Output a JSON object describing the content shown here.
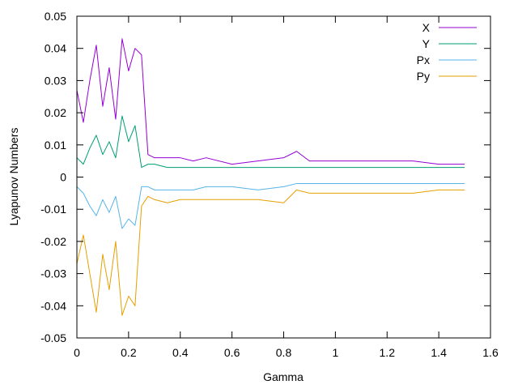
{
  "chart_data": {
    "type": "line",
    "xlabel": "Gamma",
    "ylabel": "Lyapunov Numbers",
    "xlim": [
      0,
      1.6
    ],
    "ylim": [
      -0.05,
      0.05
    ],
    "xticks": [
      "0",
      "0.2",
      "0.4",
      "0.6",
      "0.8",
      "1",
      "1.2",
      "1.4",
      "1.6"
    ],
    "yticks": [
      "-0.05",
      "-0.04",
      "-0.03",
      "-0.02",
      "-0.01",
      "0",
      "0.01",
      "0.02",
      "0.03",
      "0.04",
      "0.05"
    ],
    "legend_position": "top-right",
    "grid": false,
    "x": [
      0,
      0.025,
      0.05,
      0.075,
      0.1,
      0.125,
      0.15,
      0.175,
      0.2,
      0.225,
      0.25,
      0.275,
      0.3,
      0.35,
      0.4,
      0.45,
      0.5,
      0.6,
      0.7,
      0.8,
      0.85,
      0.9,
      1.0,
      1.1,
      1.2,
      1.3,
      1.4,
      1.45,
      1.5
    ],
    "series": [
      {
        "name": "X",
        "color": "#9400d3",
        "values": [
          0.027,
          0.017,
          0.03,
          0.041,
          0.022,
          0.034,
          0.018,
          0.043,
          0.033,
          0.04,
          0.038,
          0.007,
          0.006,
          0.006,
          0.006,
          0.005,
          0.006,
          0.004,
          0.005,
          0.006,
          0.008,
          0.005,
          0.005,
          0.005,
          0.005,
          0.005,
          0.004,
          0.004,
          0.004
        ]
      },
      {
        "name": "Y",
        "color": "#009e73",
        "values": [
          0.006,
          0.004,
          0.009,
          0.013,
          0.007,
          0.011,
          0.006,
          0.019,
          0.011,
          0.016,
          0.003,
          0.004,
          0.004,
          0.003,
          0.003,
          0.003,
          0.003,
          0.003,
          0.003,
          0.003,
          0.003,
          0.003,
          0.003,
          0.003,
          0.003,
          0.003,
          0.003,
          0.003,
          0.003
        ]
      },
      {
        "name": "Px",
        "color": "#56b4e9",
        "values": [
          -0.003,
          -0.005,
          -0.009,
          -0.012,
          -0.007,
          -0.011,
          -0.006,
          -0.016,
          -0.013,
          -0.015,
          -0.003,
          -0.003,
          -0.004,
          -0.004,
          -0.004,
          -0.004,
          -0.003,
          -0.003,
          -0.004,
          -0.003,
          -0.002,
          -0.002,
          -0.002,
          -0.002,
          -0.002,
          -0.002,
          -0.002,
          -0.002,
          -0.002
        ]
      },
      {
        "name": "Py",
        "color": "#e69f00",
        "values": [
          -0.027,
          -0.018,
          -0.03,
          -0.042,
          -0.024,
          -0.035,
          -0.02,
          -0.043,
          -0.037,
          -0.04,
          -0.009,
          -0.006,
          -0.007,
          -0.008,
          -0.007,
          -0.007,
          -0.007,
          -0.007,
          -0.007,
          -0.008,
          -0.004,
          -0.005,
          -0.005,
          -0.005,
          -0.005,
          -0.005,
          -0.004,
          -0.004,
          -0.004
        ]
      }
    ]
  }
}
